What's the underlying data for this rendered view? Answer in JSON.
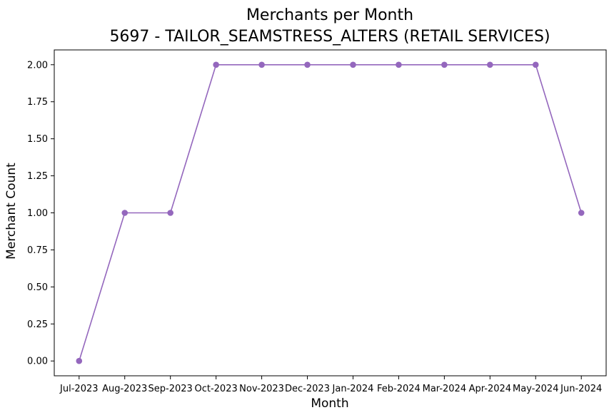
{
  "chart_data": {
    "type": "line",
    "title": "Merchants per Month",
    "subtitle": "5697 - TAILOR_SEAMSTRESS_ALTERS (RETAIL SERVICES)",
    "xlabel": "Month",
    "ylabel": "Merchant Count",
    "categories": [
      "Jul-2023",
      "Aug-2023",
      "Sep-2023",
      "Oct-2023",
      "Nov-2023",
      "Dec-2023",
      "Jan-2024",
      "Feb-2024",
      "Mar-2024",
      "Apr-2024",
      "May-2024",
      "Jun-2024"
    ],
    "series": [
      {
        "values": [
          0,
          1,
          1,
          2,
          2,
          2,
          2,
          2,
          2,
          2,
          2,
          1
        ],
        "color": "#9467bd",
        "marker": "circle"
      }
    ],
    "ylim": [
      -0.1,
      2.1
    ],
    "yticks": [
      "0.00",
      "0.25",
      "0.50",
      "0.75",
      "1.00",
      "1.25",
      "1.50",
      "1.75",
      "2.00"
    ],
    "grid": false,
    "legend": "none"
  }
}
